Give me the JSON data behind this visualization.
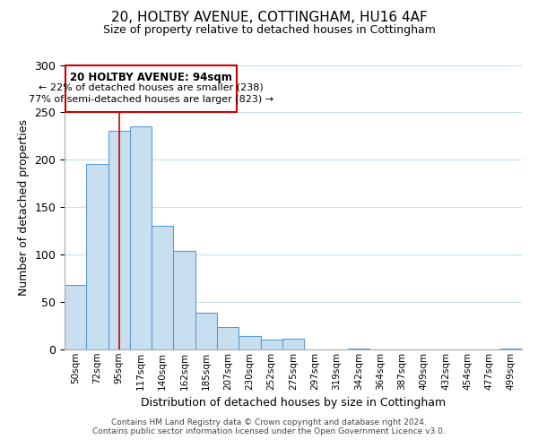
{
  "title": "20, HOLTBY AVENUE, COTTINGHAM, HU16 4AF",
  "subtitle": "Size of property relative to detached houses in Cottingham",
  "xlabel": "Distribution of detached houses by size in Cottingham",
  "ylabel": "Number of detached properties",
  "bar_labels": [
    "50sqm",
    "72sqm",
    "95sqm",
    "117sqm",
    "140sqm",
    "162sqm",
    "185sqm",
    "207sqm",
    "230sqm",
    "252sqm",
    "275sqm",
    "297sqm",
    "319sqm",
    "342sqm",
    "364sqm",
    "387sqm",
    "409sqm",
    "432sqm",
    "454sqm",
    "477sqm",
    "499sqm"
  ],
  "bar_values": [
    68,
    196,
    231,
    235,
    130,
    104,
    39,
    24,
    14,
    10,
    11,
    0,
    0,
    1,
    0,
    0,
    0,
    0,
    0,
    0,
    1
  ],
  "bar_color": "#c8dff0",
  "bar_edge_color": "#5b9bd5",
  "highlight_bar_index": 2,
  "highlight_line_color": "#cc0000",
  "ylim": [
    0,
    300
  ],
  "yticks": [
    0,
    50,
    100,
    150,
    200,
    250,
    300
  ],
  "annotation_title": "20 HOLTBY AVENUE: 94sqm",
  "annotation_line1": "← 22% of detached houses are smaller (238)",
  "annotation_line2": "77% of semi-detached houses are larger (823) →",
  "annotation_box_color": "#ffffff",
  "annotation_box_edge": "#cc0000",
  "footer_line1": "Contains HM Land Registry data © Crown copyright and database right 2024.",
  "footer_line2": "Contains public sector information licensed under the Open Government Licence v3.0.",
  "background_color": "#ffffff",
  "grid_color": "#c8dff0"
}
